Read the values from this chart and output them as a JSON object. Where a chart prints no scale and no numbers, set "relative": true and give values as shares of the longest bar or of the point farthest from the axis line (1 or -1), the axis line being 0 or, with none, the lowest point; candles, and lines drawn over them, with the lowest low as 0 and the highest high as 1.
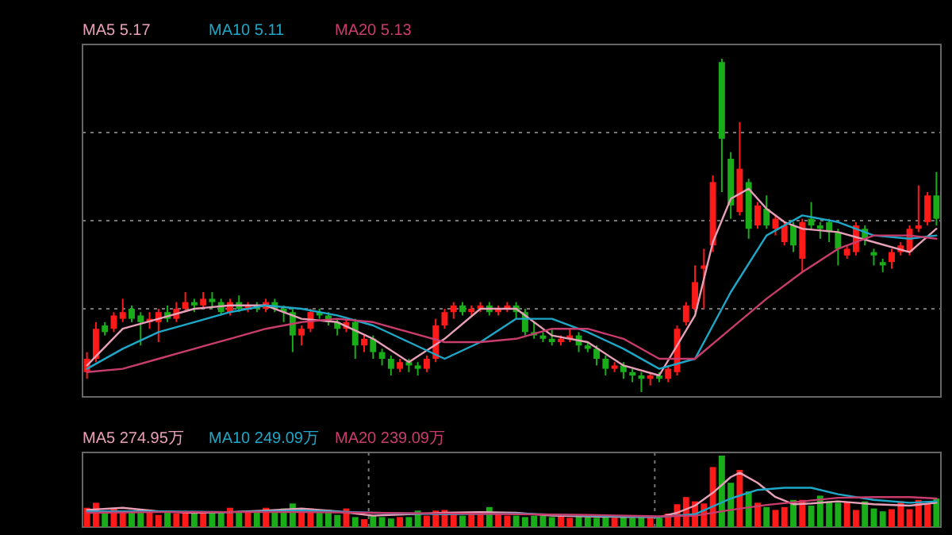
{
  "chart_data": [
    {
      "type": "candlestick",
      "relative": true,
      "grid": "y",
      "legend": "top left",
      "categories": [
        null,
        null,
        null,
        null,
        null,
        null,
        null,
        null,
        null,
        null,
        null,
        null,
        null,
        null,
        null,
        null,
        null,
        null,
        null,
        null,
        null,
        null,
        null,
        null,
        null,
        null,
        null,
        null,
        null,
        null,
        null,
        null,
        null,
        null,
        null,
        null,
        null,
        null,
        null,
        null,
        null,
        null,
        null,
        null,
        null,
        null,
        null,
        null,
        null,
        null,
        null,
        null,
        null,
        null,
        null,
        null,
        null,
        null,
        null,
        null,
        null,
        null,
        null,
        null,
        null,
        null,
        null,
        null,
        null,
        null,
        null,
        null,
        null,
        null,
        null,
        null,
        null,
        null,
        null,
        null,
        null,
        null,
        null,
        null,
        null,
        null,
        null,
        null,
        null,
        null,
        null,
        null,
        null,
        null,
        null,
        null
      ],
      "ohlc": [
        [
          0.06,
          0.12,
          0.04,
          0.1
        ],
        [
          0.1,
          0.21,
          0.09,
          0.19
        ],
        [
          0.2,
          0.21,
          0.17,
          0.18
        ],
        [
          0.19,
          0.24,
          0.18,
          0.23
        ],
        [
          0.22,
          0.28,
          0.21,
          0.24
        ],
        [
          0.25,
          0.26,
          0.21,
          0.22
        ],
        [
          0.23,
          0.24,
          0.14,
          0.21
        ],
        [
          0.21,
          0.24,
          0.19,
          0.22
        ],
        [
          0.21,
          0.25,
          0.15,
          0.24
        ],
        [
          0.24,
          0.26,
          0.21,
          0.22
        ],
        [
          0.22,
          0.27,
          0.21,
          0.25
        ],
        [
          0.25,
          0.3,
          0.24,
          0.27
        ],
        [
          0.27,
          0.28,
          0.24,
          0.26
        ],
        [
          0.26,
          0.3,
          0.25,
          0.28
        ],
        [
          0.28,
          0.3,
          0.25,
          0.27
        ],
        [
          0.27,
          0.28,
          0.23,
          0.24
        ],
        [
          0.24,
          0.28,
          0.23,
          0.27
        ],
        [
          0.27,
          0.29,
          0.24,
          0.25
        ],
        [
          0.25,
          0.27,
          0.24,
          0.26
        ],
        [
          0.26,
          0.27,
          0.24,
          0.25
        ],
        [
          0.25,
          0.28,
          0.24,
          0.27
        ],
        [
          0.27,
          0.28,
          0.24,
          0.25
        ],
        [
          0.25,
          0.26,
          0.21,
          0.24
        ],
        [
          0.24,
          0.25,
          0.12,
          0.17
        ],
        [
          0.17,
          0.2,
          0.14,
          0.19
        ],
        [
          0.19,
          0.25,
          0.18,
          0.24
        ],
        [
          0.24,
          0.25,
          0.22,
          0.23
        ],
        [
          0.23,
          0.24,
          0.2,
          0.21
        ],
        [
          0.21,
          0.22,
          0.17,
          0.19
        ],
        [
          0.19,
          0.22,
          0.18,
          0.21
        ],
        [
          0.21,
          0.22,
          0.1,
          0.14
        ],
        [
          0.14,
          0.17,
          0.12,
          0.16
        ],
        [
          0.16,
          0.17,
          0.1,
          0.12
        ],
        [
          0.12,
          0.13,
          0.08,
          0.1
        ],
        [
          0.1,
          0.11,
          0.05,
          0.07
        ],
        [
          0.07,
          0.1,
          0.06,
          0.09
        ],
        [
          0.09,
          0.1,
          0.06,
          0.08
        ],
        [
          0.08,
          0.09,
          0.05,
          0.07
        ],
        [
          0.07,
          0.11,
          0.06,
          0.1
        ],
        [
          0.1,
          0.22,
          0.09,
          0.2
        ],
        [
          0.2,
          0.25,
          0.19,
          0.24
        ],
        [
          0.24,
          0.27,
          0.22,
          0.26
        ],
        [
          0.26,
          0.27,
          0.23,
          0.24
        ],
        [
          0.24,
          0.26,
          0.23,
          0.25
        ],
        [
          0.25,
          0.27,
          0.24,
          0.26
        ],
        [
          0.26,
          0.27,
          0.23,
          0.24
        ],
        [
          0.24,
          0.26,
          0.23,
          0.25
        ],
        [
          0.25,
          0.27,
          0.24,
          0.26
        ],
        [
          0.26,
          0.27,
          0.22,
          0.24
        ],
        [
          0.24,
          0.25,
          0.17,
          0.18
        ],
        [
          0.18,
          0.21,
          0.16,
          0.17
        ],
        [
          0.17,
          0.18,
          0.15,
          0.16
        ],
        [
          0.16,
          0.19,
          0.14,
          0.15
        ],
        [
          0.15,
          0.17,
          0.14,
          0.16
        ],
        [
          0.16,
          0.19,
          0.15,
          0.17
        ],
        [
          0.17,
          0.18,
          0.12,
          0.14
        ],
        [
          0.14,
          0.15,
          0.12,
          0.13
        ],
        [
          0.13,
          0.14,
          0.08,
          0.1
        ],
        [
          0.1,
          0.11,
          0.05,
          0.07
        ],
        [
          0.07,
          0.09,
          0.06,
          0.08
        ],
        [
          0.08,
          0.09,
          0.04,
          0.06
        ],
        [
          0.06,
          0.07,
          0.03,
          0.05
        ],
        [
          0.05,
          0.06,
          0.0,
          0.04
        ],
        [
          0.04,
          0.06,
          0.02,
          0.05
        ],
        [
          0.05,
          0.06,
          0.03,
          0.04
        ],
        [
          0.04,
          0.08,
          0.03,
          0.07
        ],
        [
          0.06,
          0.2,
          0.05,
          0.19
        ],
        [
          0.21,
          0.27,
          0.2,
          0.26
        ],
        [
          0.25,
          0.38,
          0.24,
          0.33
        ],
        [
          0.37,
          0.43,
          0.25,
          0.38
        ],
        [
          0.44,
          0.65,
          0.42,
          0.63
        ],
        [
          0.99,
          1.0,
          0.6,
          0.76
        ],
        [
          0.7,
          0.72,
          0.52,
          0.56
        ],
        [
          0.54,
          0.81,
          0.53,
          0.67
        ],
        [
          0.63,
          0.64,
          0.46,
          0.49
        ],
        [
          0.5,
          0.57,
          0.49,
          0.56
        ],
        [
          0.55,
          0.59,
          0.49,
          0.5
        ],
        [
          0.49,
          0.53,
          0.47,
          0.52
        ],
        [
          0.45,
          0.51,
          0.44,
          0.5
        ],
        [
          0.5,
          0.51,
          0.42,
          0.44
        ],
        [
          0.4,
          0.52,
          0.36,
          0.51
        ],
        [
          0.52,
          0.57,
          0.49,
          0.5
        ],
        [
          0.5,
          0.51,
          0.46,
          0.49
        ],
        [
          0.51,
          0.52,
          0.45,
          0.48
        ],
        [
          0.48,
          0.49,
          0.38,
          0.43
        ],
        [
          0.41,
          0.44,
          0.4,
          0.43
        ],
        [
          0.42,
          0.51,
          0.41,
          0.5
        ],
        [
          0.49,
          0.5,
          0.44,
          0.46
        ],
        [
          0.42,
          0.43,
          0.38,
          0.41
        ],
        [
          0.39,
          0.4,
          0.36,
          0.38
        ],
        [
          0.39,
          0.43,
          0.37,
          0.42
        ],
        [
          0.42,
          0.45,
          0.41,
          0.44
        ],
        [
          0.42,
          0.5,
          0.41,
          0.49
        ],
        [
          0.49,
          0.62,
          0.48,
          0.5
        ],
        [
          0.51,
          0.6,
          0.5,
          0.59
        ],
        [
          0.59,
          0.66,
          0.5,
          0.52
        ]
      ],
      "series": [
        {
          "type": "line",
          "name": "MA5 5.17",
          "color": "#e8a0b8",
          "values": [
            0.08,
            null,
            null,
            null,
            0.19,
            null,
            null,
            null,
            0.22,
            null,
            null,
            null,
            0.25,
            null,
            null,
            null,
            0.26,
            null,
            null,
            null,
            0.26,
            null,
            null,
            null,
            0.22,
            null,
            null,
            null,
            0.21,
            null,
            null,
            null,
            0.16,
            null,
            null,
            null,
            0.09,
            null,
            null,
            null,
            0.16,
            null,
            null,
            null,
            0.25,
            null,
            null,
            null,
            0.25,
            null,
            null,
            null,
            0.17,
            null,
            null,
            null,
            0.15,
            null,
            null,
            null,
            0.08,
            null,
            null,
            null,
            0.05,
            null,
            null,
            null,
            0.23,
            null,
            0.45,
            null,
            0.58,
            null,
            0.61,
            null,
            0.55,
            null,
            0.51,
            null,
            0.49,
            null,
            null,
            null,
            0.48,
            null,
            null,
            null,
            0.45,
            null,
            null,
            null,
            0.42,
            null,
            null,
            0.49
          ]
        },
        {
          "type": "line",
          "name": "MA10 5.11",
          "color": "#1ea8c8",
          "values": [
            0.07,
            null,
            null,
            null,
            0.13,
            null,
            null,
            null,
            0.18,
            null,
            null,
            null,
            0.21,
            null,
            null,
            null,
            0.24,
            null,
            null,
            null,
            0.26,
            null,
            null,
            null,
            0.25,
            null,
            null,
            null,
            0.23,
            null,
            null,
            null,
            0.2,
            null,
            null,
            null,
            0.15,
            null,
            null,
            null,
            0.1,
            null,
            null,
            null,
            0.15,
            null,
            null,
            null,
            0.22,
            null,
            null,
            null,
            0.22,
            null,
            null,
            null,
            0.18,
            null,
            null,
            null,
            0.13,
            null,
            null,
            null,
            0.07,
            null,
            null,
            null,
            0.1,
            null,
            null,
            null,
            0.3,
            null,
            null,
            null,
            0.47,
            null,
            null,
            null,
            0.53,
            null,
            null,
            null,
            0.51,
            null,
            null,
            null,
            0.47,
            null,
            null,
            null,
            0.46,
            null,
            null,
            0.47
          ]
        },
        {
          "type": "line",
          "name": "MA20 5.13",
          "color": "#c83c6e",
          "values": [
            0.06,
            null,
            null,
            null,
            0.07,
            null,
            null,
            null,
            0.1,
            null,
            null,
            null,
            0.13,
            null,
            null,
            null,
            0.16,
            null,
            null,
            null,
            0.19,
            null,
            null,
            null,
            0.21,
            null,
            null,
            null,
            0.22,
            null,
            null,
            null,
            0.21,
            null,
            null,
            null,
            0.18,
            null,
            null,
            null,
            0.15,
            null,
            null,
            null,
            0.15,
            null,
            null,
            null,
            0.16,
            null,
            null,
            null,
            0.19,
            null,
            null,
            null,
            0.19,
            null,
            null,
            null,
            0.16,
            null,
            null,
            null,
            0.1,
            null,
            null,
            null,
            0.1,
            null,
            null,
            null,
            0.19,
            null,
            null,
            null,
            0.28,
            null,
            null,
            null,
            0.36,
            null,
            null,
            null,
            0.43,
            null,
            null,
            null,
            0.47,
            null,
            null,
            null,
            0.47,
            null,
            null,
            0.46
          ]
        }
      ]
    },
    {
      "type": "bar",
      "relative": true,
      "grid": "x",
      "legend": "top left",
      "categories": [
        null,
        null,
        null,
        null,
        null,
        null,
        null,
        null,
        null,
        null,
        null,
        null,
        null,
        null,
        null,
        null,
        null,
        null,
        null,
        null,
        null,
        null,
        null,
        null,
        null,
        null,
        null,
        null,
        null,
        null,
        null,
        null,
        null,
        null,
        null,
        null,
        null,
        null,
        null,
        null,
        null,
        null,
        null,
        null,
        null,
        null,
        null,
        null,
        null,
        null,
        null,
        null,
        null,
        null,
        null,
        null,
        null,
        null,
        null,
        null,
        null,
        null,
        null,
        null,
        null,
        null,
        null,
        null,
        null,
        null,
        null,
        null,
        null,
        null,
        null,
        null,
        null,
        null,
        null,
        null,
        null,
        null,
        null,
        null,
        null,
        null,
        null,
        null,
        null,
        null,
        null,
        null,
        null,
        null,
        null,
        null
      ],
      "series": [
        {
          "type": "bar",
          "values": [
            0.27,
            0.34,
            0.22,
            0.26,
            0.22,
            0.2,
            0.2,
            0.22,
            0.17,
            0.22,
            0.19,
            0.2,
            0.2,
            0.22,
            0.2,
            0.22,
            0.27,
            0.2,
            0.22,
            0.22,
            0.27,
            0.22,
            0.26,
            0.33,
            0.22,
            0.26,
            0.22,
            0.24,
            0.17,
            0.26,
            0.14,
            0.11,
            0.16,
            0.14,
            0.12,
            0.14,
            0.14,
            0.23,
            0.16,
            0.23,
            0.24,
            0.18,
            0.16,
            0.18,
            0.19,
            0.28,
            0.18,
            0.16,
            0.16,
            0.14,
            0.16,
            0.16,
            0.14,
            0.17,
            0.13,
            0.15,
            0.14,
            0.13,
            0.14,
            0.13,
            0.14,
            0.13,
            0.15,
            0.14,
            0.13,
            0.19,
            0.32,
            0.42,
            0.36,
            0.33,
            0.84,
            1.0,
            0.62,
            0.8,
            0.5,
            0.34,
            0.28,
            0.24,
            0.28,
            0.38,
            0.38,
            0.3,
            0.44,
            0.36,
            0.34,
            0.35,
            0.24,
            0.36,
            0.26,
            0.22,
            0.25,
            0.36,
            0.25,
            0.38,
            0.32,
            0.4
          ],
          "colors": [
            "#ff1a1a",
            "#ff1a1a",
            "#1aad1a",
            "#ff1a1a",
            "#ff1a1a",
            "#1aad1a",
            "#1aad1a",
            "#ff1a1a",
            "#ff1a1a",
            "#1aad1a",
            "#ff1a1a",
            "#ff1a1a",
            "#1aad1a",
            "#ff1a1a",
            "#1aad1a",
            "#1aad1a",
            "#ff1a1a",
            "#1aad1a",
            "#ff1a1a",
            "#1aad1a",
            "#ff1a1a",
            "#1aad1a",
            "#1aad1a",
            "#1aad1a",
            "#ff1a1a",
            "#ff1a1a",
            "#1aad1a",
            "#1aad1a",
            "#1aad1a",
            "#ff1a1a",
            "#1aad1a",
            "#ff1a1a",
            "#1aad1a",
            "#1aad1a",
            "#1aad1a",
            "#ff1a1a",
            "#1aad1a",
            "#1aad1a",
            "#ff1a1a",
            "#ff1a1a",
            "#ff1a1a",
            "#ff1a1a",
            "#1aad1a",
            "#ff1a1a",
            "#ff1a1a",
            "#1aad1a",
            "#ff1a1a",
            "#ff1a1a",
            "#1aad1a",
            "#1aad1a",
            "#1aad1a",
            "#1aad1a",
            "#1aad1a",
            "#ff1a1a",
            "#ff1a1a",
            "#1aad1a",
            "#1aad1a",
            "#1aad1a",
            "#1aad1a",
            "#ff1a1a",
            "#1aad1a",
            "#1aad1a",
            "#1aad1a",
            "#ff1a1a",
            "#1aad1a",
            "#ff1a1a",
            "#ff1a1a",
            "#ff1a1a",
            "#ff1a1a",
            "#ff1a1a",
            "#ff1a1a",
            "#1aad1a",
            "#1aad1a",
            "#ff1a1a",
            "#1aad1a",
            "#ff1a1a",
            "#1aad1a",
            "#ff1a1a",
            "#ff1a1a",
            "#1aad1a",
            "#ff1a1a",
            "#1aad1a",
            "#1aad1a",
            "#1aad1a",
            "#1aad1a",
            "#ff1a1a",
            "#ff1a1a",
            "#1aad1a",
            "#1aad1a",
            "#1aad1a",
            "#ff1a1a",
            "#ff1a1a",
            "#ff1a1a",
            "#ff1a1a",
            "#ff1a1a",
            "#1aad1a"
          ]
        },
        {
          "type": "line",
          "name": "MA5 274.95万",
          "color": "#e8a0b8",
          "values": [
            0.24,
            null,
            null,
            null,
            0.27,
            null,
            null,
            null,
            0.22,
            null,
            null,
            null,
            0.2,
            null,
            null,
            null,
            0.21,
            null,
            null,
            null,
            0.23,
            null,
            null,
            null,
            0.26,
            null,
            null,
            null,
            0.22,
            null,
            null,
            null,
            0.16,
            null,
            null,
            null,
            0.18,
            null,
            null,
            null,
            0.2,
            null,
            null,
            null,
            0.21,
            null,
            null,
            null,
            0.2,
            null,
            null,
            null,
            0.16,
            null,
            null,
            null,
            0.15,
            null,
            null,
            null,
            0.14,
            null,
            null,
            null,
            0.14,
            null,
            0.2,
            null,
            0.3,
            null,
            0.48,
            null,
            0.7,
            0.76,
            null,
            0.62,
            null,
            0.42,
            null,
            0.32,
            null,
            0.33,
            null,
            null,
            0.36,
            null,
            null,
            null,
            0.32,
            null,
            null,
            null,
            0.3,
            null,
            null,
            0.34
          ]
        },
        {
          "type": "line",
          "name": "MA10 249.09万",
          "color": "#1ea8c8",
          "values": [
            0.22,
            null,
            null,
            null,
            null,
            null,
            null,
            null,
            0.22,
            null,
            null,
            null,
            null,
            null,
            null,
            null,
            0.21,
            null,
            null,
            null,
            null,
            null,
            null,
            null,
            0.23,
            null,
            null,
            null,
            null,
            null,
            null,
            null,
            0.2,
            null,
            null,
            null,
            null,
            null,
            null,
            null,
            0.18,
            null,
            null,
            null,
            null,
            null,
            null,
            null,
            0.19,
            null,
            null,
            null,
            null,
            null,
            null,
            null,
            0.16,
            null,
            null,
            null,
            null,
            null,
            null,
            null,
            0.14,
            null,
            null,
            null,
            0.18,
            null,
            null,
            null,
            0.4,
            null,
            null,
            0.52,
            null,
            null,
            0.55,
            null,
            null,
            0.55,
            null,
            null,
            0.46,
            null,
            null,
            null,
            0.38,
            null,
            null,
            null,
            0.34,
            null,
            null,
            0.36
          ]
        },
        {
          "type": "line",
          "name": "MA20 239.09万",
          "color": "#c83c6e",
          "values": [
            0.2,
            null,
            null,
            null,
            null,
            null,
            null,
            null,
            0.21,
            null,
            null,
            null,
            null,
            null,
            null,
            null,
            0.21,
            null,
            null,
            null,
            null,
            null,
            null,
            null,
            0.21,
            null,
            null,
            null,
            null,
            null,
            null,
            null,
            0.2,
            null,
            null,
            null,
            null,
            null,
            null,
            null,
            0.19,
            null,
            null,
            null,
            null,
            null,
            null,
            null,
            0.18,
            null,
            null,
            null,
            null,
            null,
            null,
            null,
            0.17,
            null,
            null,
            null,
            null,
            null,
            null,
            null,
            0.15,
            null,
            null,
            null,
            0.16,
            null,
            null,
            null,
            0.24,
            null,
            null,
            null,
            0.31,
            null,
            null,
            null,
            0.36,
            null,
            null,
            null,
            0.41,
            null,
            null,
            null,
            0.42,
            null,
            null,
            null,
            0.42,
            null,
            null,
            0.4
          ]
        }
      ]
    }
  ]
}
